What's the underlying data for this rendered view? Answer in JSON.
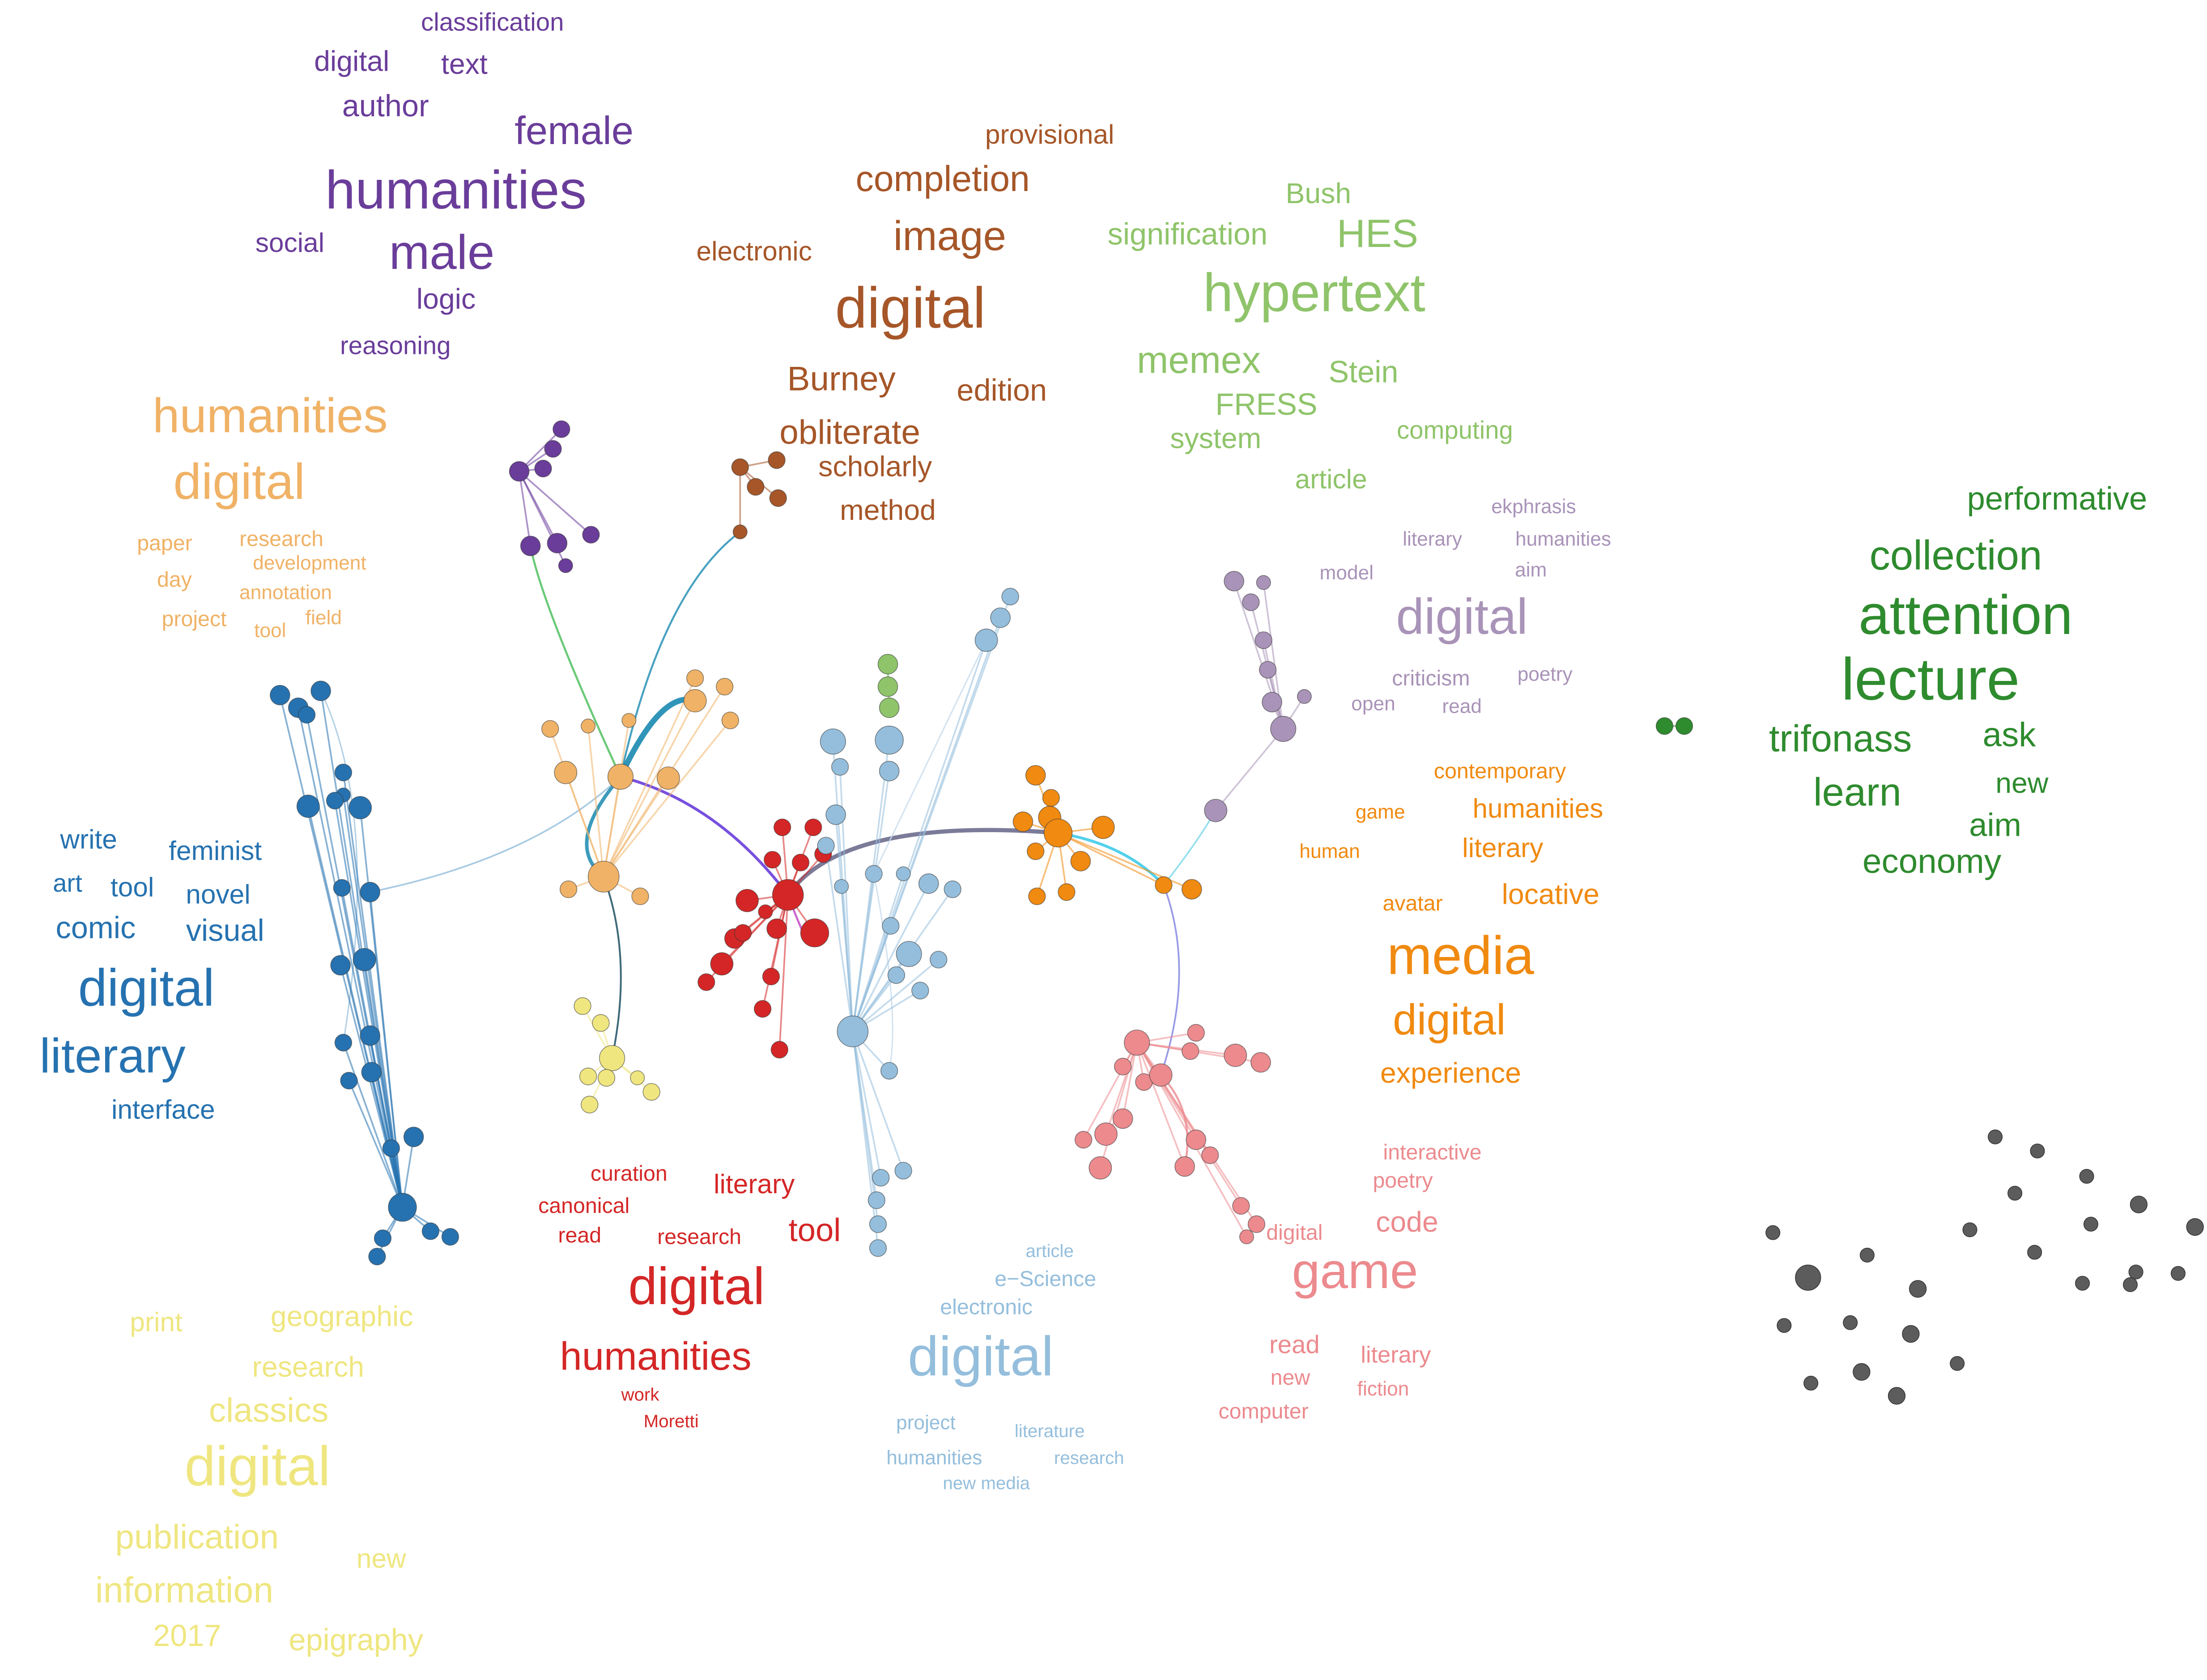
{
  "palette": {
    "purple": "#6a3d9a",
    "brown": "#a65628",
    "lightgreen": "#8fc46a",
    "lilac": "#a993b8",
    "darkgreen": "#2e8b2e",
    "peach": "#f0b266",
    "darkblue": "#2672b0",
    "yellow": "#efe680",
    "red": "#d42626",
    "lightblue": "#94bedc",
    "orange": "#f08a10",
    "pink": "#ec8a8e",
    "gray": "#5c5c5c"
  },
  "clusters": [
    {
      "id": "purple",
      "color_key": "purple",
      "words": [
        "classification",
        "digital",
        "text",
        "author",
        "female",
        "humanities",
        "social",
        "male",
        "logic",
        "reasoning"
      ]
    },
    {
      "id": "brown",
      "color_key": "brown",
      "words": [
        "provisional",
        "completion",
        "electronic",
        "image",
        "digital",
        "Burney",
        "edition",
        "obliterate",
        "scholarly",
        "method"
      ]
    },
    {
      "id": "lightgreen",
      "color_key": "lightgreen",
      "words": [
        "Bush",
        "signification",
        "HES",
        "hypertext",
        "memex",
        "Stein",
        "FRESS",
        "computing",
        "system",
        "article"
      ]
    },
    {
      "id": "lilac",
      "color_key": "lilac",
      "words": [
        "ekphrasis",
        "literary",
        "humanities",
        "model",
        "aim",
        "digital",
        "criticism",
        "poetry",
        "open",
        "read"
      ]
    },
    {
      "id": "darkgreen",
      "color_key": "darkgreen",
      "words": [
        "performative",
        "collection",
        "attention",
        "lecture",
        "trifonass",
        "ask",
        "learn",
        "new",
        "aim",
        "economy"
      ]
    },
    {
      "id": "peach",
      "color_key": "peach",
      "words": [
        "humanities",
        "digital",
        "paper",
        "research",
        "development",
        "day",
        "annotation",
        "project",
        "tool",
        "field"
      ]
    },
    {
      "id": "darkblue",
      "color_key": "darkblue",
      "words": [
        "write",
        "feminist",
        "art",
        "tool",
        "novel",
        "comic",
        "visual",
        "digital",
        "literary",
        "interface"
      ]
    },
    {
      "id": "orange",
      "color_key": "orange",
      "words": [
        "contemporary",
        "game",
        "humanities",
        "human",
        "literary",
        "avatar",
        "locative",
        "media",
        "digital",
        "experience"
      ]
    },
    {
      "id": "red",
      "color_key": "red",
      "words": [
        "curation",
        "literary",
        "canonical",
        "read",
        "research",
        "tool",
        "digital",
        "humanities",
        "work",
        "Moretti"
      ]
    },
    {
      "id": "lightblue",
      "color_key": "lightblue",
      "words": [
        "article",
        "e−Science",
        "electronic",
        "digital",
        "project",
        "literature",
        "humanities",
        "research",
        "new media"
      ]
    },
    {
      "id": "pink",
      "color_key": "pink",
      "words": [
        "interactive",
        "poetry",
        "code",
        "digital",
        "game",
        "read",
        "literary",
        "new",
        "fiction",
        "computer"
      ]
    },
    {
      "id": "yellow",
      "color_key": "yellow",
      "words": [
        "print",
        "geographic",
        "research",
        "classics",
        "digital",
        "publication",
        "new",
        "information",
        "2017",
        "epigraphy"
      ]
    }
  ]
}
